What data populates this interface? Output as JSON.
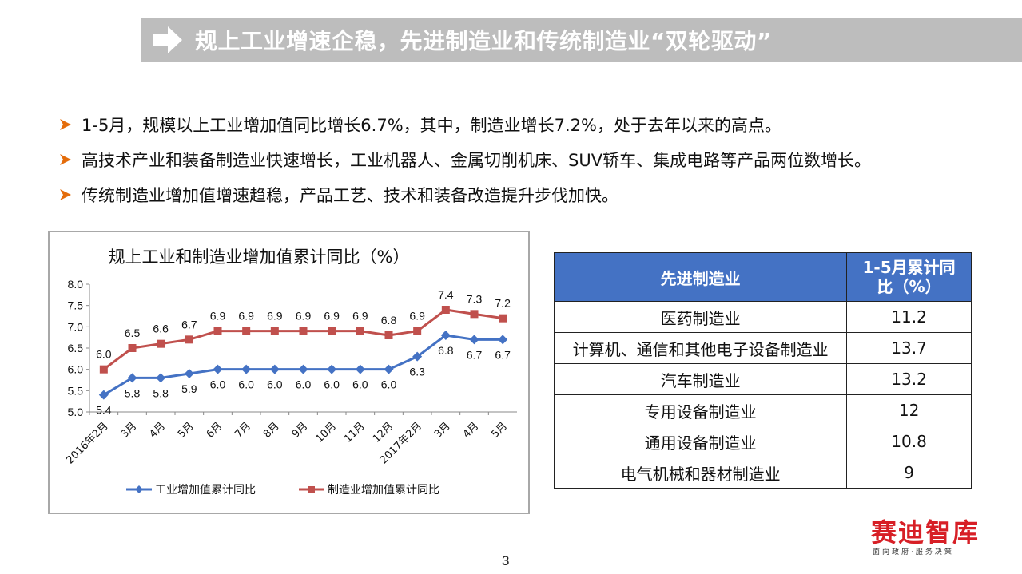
{
  "header": {
    "title": "规上工业增速企稳，先进制造业和传统制造业“双轮驱动”"
  },
  "bullets": [
    "1-5月，规模以上工业增加值同比增长6.7%，其中，制造业增长7.2%，处于去年以来的高点。",
    "高技术产业和装备制造业快速增长，工业机器人、金属切削机床、SUV轿车、集成电路等产品两位数增长。",
    "传统制造业增加值增速趋稳，产品工艺、技术和装备改造提升步伐加快。"
  ],
  "chart_data": {
    "type": "line",
    "title": "规上工业和制造业增加值累计同比（%）",
    "categories": [
      "2016年2月",
      "3月",
      "4月",
      "5月",
      "6月",
      "7月",
      "8月",
      "9月",
      "10月",
      "11月",
      "12月",
      "2017年2月",
      "3月",
      "4月",
      "5月"
    ],
    "series": [
      {
        "name": "工业增加值累计同比",
        "color": "#4472c4",
        "marker": "diamond",
        "values": [
          5.4,
          5.8,
          5.8,
          5.9,
          6.0,
          6.0,
          6.0,
          6.0,
          6.0,
          6.0,
          6.0,
          6.3,
          6.8,
          6.7,
          6.7
        ]
      },
      {
        "name": "制造业增加值累计同比",
        "color": "#c0504d",
        "marker": "square",
        "values": [
          6.0,
          6.5,
          6.6,
          6.7,
          6.9,
          6.9,
          6.9,
          6.9,
          6.9,
          6.9,
          6.8,
          6.9,
          7.4,
          7.3,
          7.2
        ]
      }
    ],
    "yticks": [
      "8.0",
      "7.5",
      "7.0",
      "6.5",
      "6.0",
      "5.5",
      "5.0"
    ],
    "ylim": [
      5.0,
      8.0
    ],
    "grid": false,
    "legend": "bottom"
  },
  "table": {
    "headers": [
      "先进制造业",
      "1-5月累计同比（%）"
    ],
    "rows": [
      [
        "医药制造业",
        "11.2"
      ],
      [
        "计算机、通信和其他电子设备制造业",
        "13.7"
      ],
      [
        "汽车制造业",
        "13.2"
      ],
      [
        "专用设备制造业",
        "12"
      ],
      [
        "通用设备制造业",
        "10.8"
      ],
      [
        "电气机械和器材制造业",
        "9"
      ]
    ]
  },
  "logo": {
    "name": "赛迪智库",
    "tagline": "面向政府·服务决策"
  },
  "page_number": "3",
  "colors": {
    "title_bar": "#bdbdbd",
    "table_header": "#4472c4",
    "bullet": "#e46c0a",
    "logo": "#d71f26"
  }
}
